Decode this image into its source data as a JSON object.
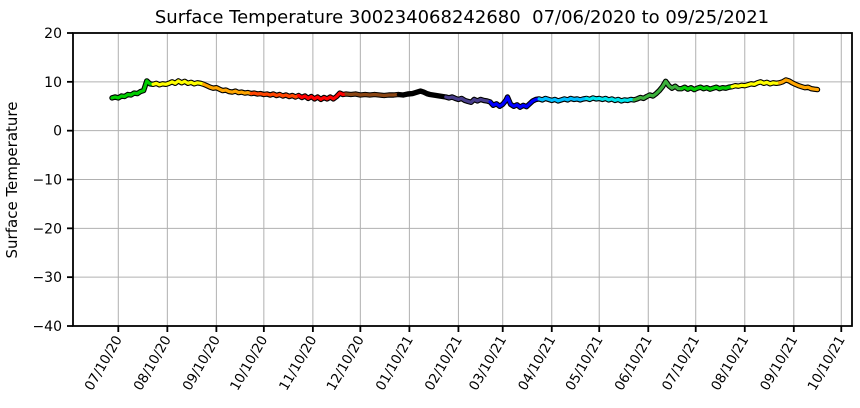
{
  "chart_data": {
    "type": "line",
    "title": "Surface Temperature 300234068242680  07/06/2020 to 09/25/2021",
    "ylabel": "Surface Temperature",
    "xlabel": "",
    "ylim": [
      -40,
      20
    ],
    "grid": true,
    "grid_color": "#b0b0b0",
    "axis_color": "#000000",
    "outline_color": "#000000",
    "date_range": {
      "start": "2020-07-06",
      "end": "2021-09-25"
    },
    "y_ticks": [
      {
        "value": 20,
        "label": "20"
      },
      {
        "value": 10,
        "label": "10"
      },
      {
        "value": 0,
        "label": "0"
      },
      {
        "value": -10,
        "label": "−10"
      },
      {
        "value": -20,
        "label": "−20"
      },
      {
        "value": -30,
        "label": "−30"
      },
      {
        "value": -40,
        "label": "−40"
      }
    ],
    "x_tick_labels": [
      "07/10/20",
      "08/10/20",
      "09/10/20",
      "10/10/20",
      "11/10/20",
      "12/10/20",
      "01/10/21",
      "02/10/21",
      "03/10/21",
      "04/10/21",
      "05/10/21",
      "06/10/21",
      "07/10/21",
      "08/10/21",
      "09/10/21",
      "10/10/21"
    ],
    "month_colors": [
      {
        "month": "2020-07",
        "color": "#00CD00"
      },
      {
        "month": "2020-08",
        "color": "#FFFF00"
      },
      {
        "month": "2020-09",
        "color": "#FFA500"
      },
      {
        "month": "2020-10",
        "color": "#FF4500"
      },
      {
        "month": "2020-11",
        "color": "#FF0000"
      },
      {
        "month": "2020-12",
        "color": "#8B4513"
      },
      {
        "month": "2021-01",
        "color": "#000000"
      },
      {
        "month": "2021-02",
        "color": "#483D8B"
      },
      {
        "month": "2021-03",
        "color": "#0000FF"
      },
      {
        "month": "2021-04",
        "color": "#00BFFF"
      },
      {
        "month": "2021-05",
        "color": "#00E5EE"
      },
      {
        "month": "2021-06",
        "color": "#3CB03C"
      },
      {
        "month": "2021-07",
        "color": "#00CD00"
      },
      {
        "month": "2021-08",
        "color": "#FFFF00"
      },
      {
        "month": "2021-09",
        "color": "#FFA500"
      }
    ],
    "series": [
      {
        "name": "surface_temperature",
        "points": [
          [
            "2020-07-06",
            6.7
          ],
          [
            "2020-07-08",
            6.9
          ],
          [
            "2020-07-10",
            6.7
          ],
          [
            "2020-07-12",
            7.1
          ],
          [
            "2020-07-14",
            7.0
          ],
          [
            "2020-07-16",
            7.4
          ],
          [
            "2020-07-18",
            7.3
          ],
          [
            "2020-07-20",
            7.7
          ],
          [
            "2020-07-22",
            7.6
          ],
          [
            "2020-07-24",
            8.0
          ],
          [
            "2020-07-26",
            8.2
          ],
          [
            "2020-07-28",
            10.2
          ],
          [
            "2020-07-30",
            9.6
          ],
          [
            "2020-08-01",
            9.5
          ],
          [
            "2020-08-03",
            9.7
          ],
          [
            "2020-08-05",
            9.4
          ],
          [
            "2020-08-07",
            9.6
          ],
          [
            "2020-08-09",
            9.5
          ],
          [
            "2020-08-11",
            9.7
          ],
          [
            "2020-08-13",
            10.0
          ],
          [
            "2020-08-15",
            9.7
          ],
          [
            "2020-08-17",
            10.2
          ],
          [
            "2020-08-19",
            9.8
          ],
          [
            "2020-08-21",
            10.1
          ],
          [
            "2020-08-23",
            9.7
          ],
          [
            "2020-08-25",
            9.9
          ],
          [
            "2020-08-27",
            9.6
          ],
          [
            "2020-08-29",
            9.8
          ],
          [
            "2020-08-31",
            9.7
          ],
          [
            "2020-09-02",
            9.5
          ],
          [
            "2020-09-04",
            9.2
          ],
          [
            "2020-09-06",
            8.9
          ],
          [
            "2020-09-08",
            8.7
          ],
          [
            "2020-09-10",
            8.8
          ],
          [
            "2020-09-12",
            8.5
          ],
          [
            "2020-09-14",
            8.2
          ],
          [
            "2020-09-16",
            8.3
          ],
          [
            "2020-09-18",
            8.0
          ],
          [
            "2020-09-20",
            7.9
          ],
          [
            "2020-09-22",
            8.1
          ],
          [
            "2020-09-24",
            7.8
          ],
          [
            "2020-09-26",
            7.9
          ],
          [
            "2020-09-28",
            7.7
          ],
          [
            "2020-09-30",
            7.8
          ],
          [
            "2020-10-02",
            7.6
          ],
          [
            "2020-10-04",
            7.7
          ],
          [
            "2020-10-06",
            7.5
          ],
          [
            "2020-10-08",
            7.6
          ],
          [
            "2020-10-10",
            7.4
          ],
          [
            "2020-10-12",
            7.5
          ],
          [
            "2020-10-14",
            7.3
          ],
          [
            "2020-10-16",
            7.5
          ],
          [
            "2020-10-18",
            7.2
          ],
          [
            "2020-10-20",
            7.4
          ],
          [
            "2020-10-22",
            7.1
          ],
          [
            "2020-10-24",
            7.3
          ],
          [
            "2020-10-26",
            7.0
          ],
          [
            "2020-10-28",
            7.2
          ],
          [
            "2020-10-30",
            6.9
          ],
          [
            "2020-11-01",
            7.2
          ],
          [
            "2020-11-03",
            6.8
          ],
          [
            "2020-11-05",
            7.1
          ],
          [
            "2020-11-07",
            6.6
          ],
          [
            "2020-11-09",
            7.0
          ],
          [
            "2020-11-11",
            6.5
          ],
          [
            "2020-11-13",
            6.9
          ],
          [
            "2020-11-15",
            6.4
          ],
          [
            "2020-11-17",
            6.8
          ],
          [
            "2020-11-19",
            6.5
          ],
          [
            "2020-11-21",
            6.9
          ],
          [
            "2020-11-23",
            6.5
          ],
          [
            "2020-11-25",
            7.0
          ],
          [
            "2020-11-27",
            7.7
          ],
          [
            "2020-11-29",
            7.4
          ],
          [
            "2020-12-01",
            7.5
          ],
          [
            "2020-12-04",
            7.4
          ],
          [
            "2020-12-07",
            7.5
          ],
          [
            "2020-12-10",
            7.3
          ],
          [
            "2020-12-13",
            7.4
          ],
          [
            "2020-12-16",
            7.3
          ],
          [
            "2020-12-19",
            7.4
          ],
          [
            "2020-12-22",
            7.3
          ],
          [
            "2020-12-25",
            7.2
          ],
          [
            "2020-12-28",
            7.3
          ],
          [
            "2020-12-31",
            7.3
          ],
          [
            "2021-01-03",
            7.4
          ],
          [
            "2021-01-06",
            7.3
          ],
          [
            "2021-01-09",
            7.5
          ],
          [
            "2021-01-12",
            7.6
          ],
          [
            "2021-01-15",
            7.9
          ],
          [
            "2021-01-17",
            8.1
          ],
          [
            "2021-01-19",
            7.9
          ],
          [
            "2021-01-21",
            7.6
          ],
          [
            "2021-01-23",
            7.4
          ],
          [
            "2021-01-25",
            7.3
          ],
          [
            "2021-01-27",
            7.2
          ],
          [
            "2021-01-29",
            7.1
          ],
          [
            "2021-01-31",
            7.0
          ],
          [
            "2021-02-02",
            6.9
          ],
          [
            "2021-02-04",
            6.7
          ],
          [
            "2021-02-06",
            6.9
          ],
          [
            "2021-02-08",
            6.6
          ],
          [
            "2021-02-10",
            6.4
          ],
          [
            "2021-02-12",
            6.6
          ],
          [
            "2021-02-14",
            6.2
          ],
          [
            "2021-02-16",
            6.0
          ],
          [
            "2021-02-18",
            5.8
          ],
          [
            "2021-02-20",
            6.4
          ],
          [
            "2021-02-22",
            6.1
          ],
          [
            "2021-02-24",
            6.4
          ],
          [
            "2021-02-26",
            6.2
          ],
          [
            "2021-02-28",
            6.1
          ],
          [
            "2021-03-02",
            5.9
          ],
          [
            "2021-03-04",
            5.2
          ],
          [
            "2021-03-06",
            5.5
          ],
          [
            "2021-03-08",
            5.0
          ],
          [
            "2021-03-10",
            5.4
          ],
          [
            "2021-03-12",
            6.2
          ],
          [
            "2021-03-13",
            6.9
          ],
          [
            "2021-03-15",
            5.4
          ],
          [
            "2021-03-17",
            5.0
          ],
          [
            "2021-03-19",
            5.3
          ],
          [
            "2021-03-21",
            4.8
          ],
          [
            "2021-03-23",
            5.2
          ],
          [
            "2021-03-25",
            4.9
          ],
          [
            "2021-03-27",
            5.5
          ],
          [
            "2021-03-29",
            6.1
          ],
          [
            "2021-03-31",
            6.4
          ],
          [
            "2021-04-02",
            6.5
          ],
          [
            "2021-04-04",
            6.3
          ],
          [
            "2021-04-06",
            6.6
          ],
          [
            "2021-04-08",
            6.4
          ],
          [
            "2021-04-10",
            6.2
          ],
          [
            "2021-04-12",
            6.4
          ],
          [
            "2021-04-14",
            6.1
          ],
          [
            "2021-04-16",
            6.3
          ],
          [
            "2021-04-18",
            6.5
          ],
          [
            "2021-04-20",
            6.3
          ],
          [
            "2021-04-22",
            6.6
          ],
          [
            "2021-04-24",
            6.4
          ],
          [
            "2021-04-26",
            6.5
          ],
          [
            "2021-04-28",
            6.3
          ],
          [
            "2021-04-30",
            6.5
          ],
          [
            "2021-05-02",
            6.6
          ],
          [
            "2021-05-04",
            6.4
          ],
          [
            "2021-05-06",
            6.7
          ],
          [
            "2021-05-08",
            6.5
          ],
          [
            "2021-05-10",
            6.6
          ],
          [
            "2021-05-12",
            6.4
          ],
          [
            "2021-05-14",
            6.6
          ],
          [
            "2021-05-16",
            6.3
          ],
          [
            "2021-05-18",
            6.5
          ],
          [
            "2021-05-20",
            6.2
          ],
          [
            "2021-05-22",
            6.4
          ],
          [
            "2021-05-24",
            6.1
          ],
          [
            "2021-05-26",
            6.3
          ],
          [
            "2021-05-28",
            6.2
          ],
          [
            "2021-05-30",
            6.4
          ],
          [
            "2021-06-01",
            6.3
          ],
          [
            "2021-06-03",
            6.5
          ],
          [
            "2021-06-05",
            6.8
          ],
          [
            "2021-06-07",
            6.6
          ],
          [
            "2021-06-09",
            7.0
          ],
          [
            "2021-06-11",
            7.3
          ],
          [
            "2021-06-13",
            7.1
          ],
          [
            "2021-06-15",
            7.6
          ],
          [
            "2021-06-17",
            8.2
          ],
          [
            "2021-06-19",
            9.0
          ],
          [
            "2021-06-21",
            10.1
          ],
          [
            "2021-06-23",
            9.2
          ],
          [
            "2021-06-25",
            8.7
          ],
          [
            "2021-06-27",
            9.1
          ],
          [
            "2021-06-29",
            8.6
          ],
          [
            "2021-07-01",
            8.6
          ],
          [
            "2021-07-03",
            8.9
          ],
          [
            "2021-07-05",
            8.5
          ],
          [
            "2021-07-07",
            8.8
          ],
          [
            "2021-07-09",
            8.4
          ],
          [
            "2021-07-11",
            8.7
          ],
          [
            "2021-07-13",
            8.9
          ],
          [
            "2021-07-15",
            8.6
          ],
          [
            "2021-07-17",
            8.8
          ],
          [
            "2021-07-19",
            8.5
          ],
          [
            "2021-07-21",
            8.7
          ],
          [
            "2021-07-23",
            8.9
          ],
          [
            "2021-07-25",
            8.6
          ],
          [
            "2021-07-27",
            8.8
          ],
          [
            "2021-07-29",
            8.7
          ],
          [
            "2021-07-31",
            8.9
          ],
          [
            "2021-08-02",
            9.0
          ],
          [
            "2021-08-04",
            9.2
          ],
          [
            "2021-08-06",
            9.1
          ],
          [
            "2021-08-08",
            9.3
          ],
          [
            "2021-08-10",
            9.2
          ],
          [
            "2021-08-12",
            9.4
          ],
          [
            "2021-08-14",
            9.6
          ],
          [
            "2021-08-16",
            9.5
          ],
          [
            "2021-08-18",
            9.8
          ],
          [
            "2021-08-20",
            10.0
          ],
          [
            "2021-08-22",
            9.7
          ],
          [
            "2021-08-24",
            9.9
          ],
          [
            "2021-08-26",
            9.6
          ],
          [
            "2021-08-28",
            9.8
          ],
          [
            "2021-08-30",
            9.7
          ],
          [
            "2021-09-01",
            9.8
          ],
          [
            "2021-09-03",
            10.0
          ],
          [
            "2021-09-05",
            10.4
          ],
          [
            "2021-09-07",
            10.2
          ],
          [
            "2021-09-09",
            9.8
          ],
          [
            "2021-09-11",
            9.5
          ],
          [
            "2021-09-13",
            9.2
          ],
          [
            "2021-09-15",
            9.0
          ],
          [
            "2021-09-17",
            8.8
          ],
          [
            "2021-09-19",
            8.9
          ],
          [
            "2021-09-21",
            8.6
          ],
          [
            "2021-09-23",
            8.5
          ],
          [
            "2021-09-25",
            8.4
          ]
        ]
      }
    ]
  }
}
